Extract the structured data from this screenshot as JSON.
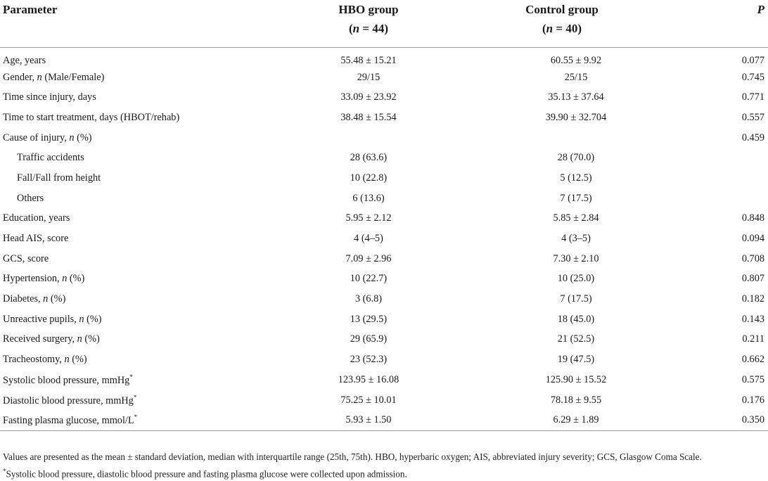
{
  "header": {
    "parameter": "Parameter",
    "hbo": "HBO group",
    "hbo_n_label": "n",
    "hbo_n_value": " = 44)",
    "control": "Control group",
    "control_n_label": "n",
    "control_n_value": " = 40)",
    "p": "P"
  },
  "rows": [
    {
      "parameter": "Age, years",
      "hbo": "55.48 ± 15.21",
      "control": "60.55 ± 9.92",
      "p": "0.077"
    },
    {
      "parameter_pre": "Gender, ",
      "parameter_it": "n",
      "parameter_post": " (Male/Female)",
      "hbo": "29/15",
      "control": "25/15",
      "p": "0.745"
    },
    {
      "parameter": "Time since injury, days",
      "hbo": "33.09 ± 23.92",
      "control": "35.13 ± 37.64",
      "p": "0.771"
    },
    {
      "parameter": "Time to start treatment, days (HBOT/rehab)",
      "hbo": "38.48 ± 15.54",
      "control": "39.90 ± 32.704",
      "p": "0.557"
    },
    {
      "parameter_pre": "Cause of injury, ",
      "parameter_it": "n",
      "parameter_post": " (%)",
      "hbo": "",
      "control": "",
      "p": "0.459"
    },
    {
      "parameter": "Traffic accidents",
      "hbo": "28 (63.6)",
      "control": "28 (70.0)",
      "p": ""
    },
    {
      "parameter": "Fall/Fall from height",
      "hbo": "10 (22.8)",
      "control": "5 (12.5)",
      "p": ""
    },
    {
      "parameter": "Others",
      "hbo": "6 (13.6)",
      "control": "7 (17.5)",
      "p": ""
    },
    {
      "parameter": "Education, years",
      "hbo": "5.95 ± 2.12",
      "control": "5.85 ± 2.84",
      "p": "0.848"
    },
    {
      "parameter": "Head AIS, score",
      "hbo": "4 (4–5)",
      "control": "4 (3–5)",
      "p": "0.094"
    },
    {
      "parameter": "GCS, score",
      "hbo": "7.09 ± 2.96",
      "control": "7.30 ± 2.10",
      "p": "0.708"
    },
    {
      "parameter_pre": "Hypertension, ",
      "parameter_it": "n",
      "parameter_post": " (%)",
      "hbo": "10 (22.7)",
      "control": "10 (25.0)",
      "p": "0.807"
    },
    {
      "parameter_pre": "Diabetes, ",
      "parameter_it": "n",
      "parameter_post": " (%)",
      "hbo": "3 (6.8)",
      "control": "7 (17.5)",
      "p": "0.182"
    },
    {
      "parameter_pre": "Unreactive pupils, ",
      "parameter_it": "n",
      "parameter_post": " (%)",
      "hbo": "13 (29.5)",
      "control": "18 (45.0)",
      "p": "0.143"
    },
    {
      "parameter_pre": "Received surgery, ",
      "parameter_it": "n",
      "parameter_post": " (%)",
      "hbo": "29 (65.9)",
      "control": "21 (52.5)",
      "p": "0.211"
    },
    {
      "parameter_pre": "Tracheostomy, ",
      "parameter_it": "n",
      "parameter_post": " (%)",
      "hbo": "23 (52.3)",
      "control": "19 (47.5)",
      "p": "0.662"
    },
    {
      "parameter": "Systolic blood pressure, mmHg",
      "sup": "*",
      "hbo": "123.95 ± 16.08",
      "control": "125.90 ± 15.52",
      "p": "0.575"
    },
    {
      "parameter": "Diastolic blood pressure, mmHg",
      "sup": "*",
      "hbo": "75.25 ± 10.01",
      "control": "78.18 ± 9.55",
      "p": "0.176"
    },
    {
      "parameter": "Fasting plasma glucose, mmol/L",
      "sup": "*",
      "hbo": "5.93 ± 1.50",
      "control": "6.29 ± 1.89",
      "p": "0.350"
    }
  ],
  "footnotes": {
    "line1": "Values are presented as the mean ± standard deviation, median with interquartile range (25th, 75th). HBO, hyperbaric oxygen; AIS, abbreviated injury severity; GCS, Glasgow Coma Scale.",
    "line2_sup": "*",
    "line2": "Systolic blood pressure, diastolic blood pressure and fasting plasma glucose were collected upon admission."
  }
}
